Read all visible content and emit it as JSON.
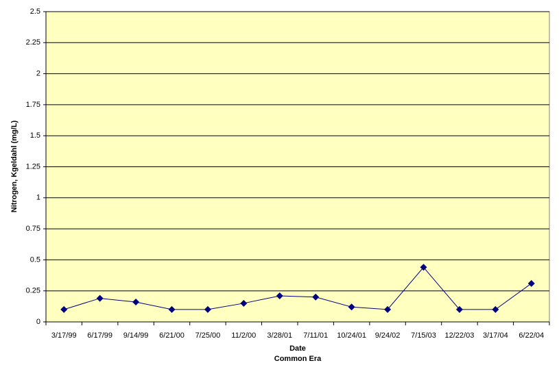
{
  "chart_data": {
    "type": "line",
    "ylabel": "Nitrogen, Kgeldahl (mg/L)",
    "xlabel": [
      "Date",
      "Common Era"
    ],
    "categories": [
      "3/17/99",
      "6/17/99",
      "9/14/99",
      "6/21/00",
      "7/25/00",
      "11/2/00",
      "3/28/01",
      "7/11/01",
      "10/24/01",
      "9/24/02",
      "7/15/03",
      "12/22/03",
      "3/17/04",
      "6/22/04"
    ],
    "series": [
      {
        "color": "#000080",
        "values": [
          0.1,
          0.19,
          0.16,
          0.1,
          0.1,
          0.15,
          0.21,
          0.2,
          0.12,
          0.1,
          0.44,
          0.1,
          0.1,
          0.31
        ]
      }
    ],
    "ylim": [
      0,
      2.5
    ],
    "yticks": [
      0,
      0.25,
      0.5,
      0.75,
      1,
      1.25,
      1.5,
      1.75,
      2,
      2.25,
      2.5
    ],
    "grid": true,
    "plot_background": "#ffffc0"
  }
}
